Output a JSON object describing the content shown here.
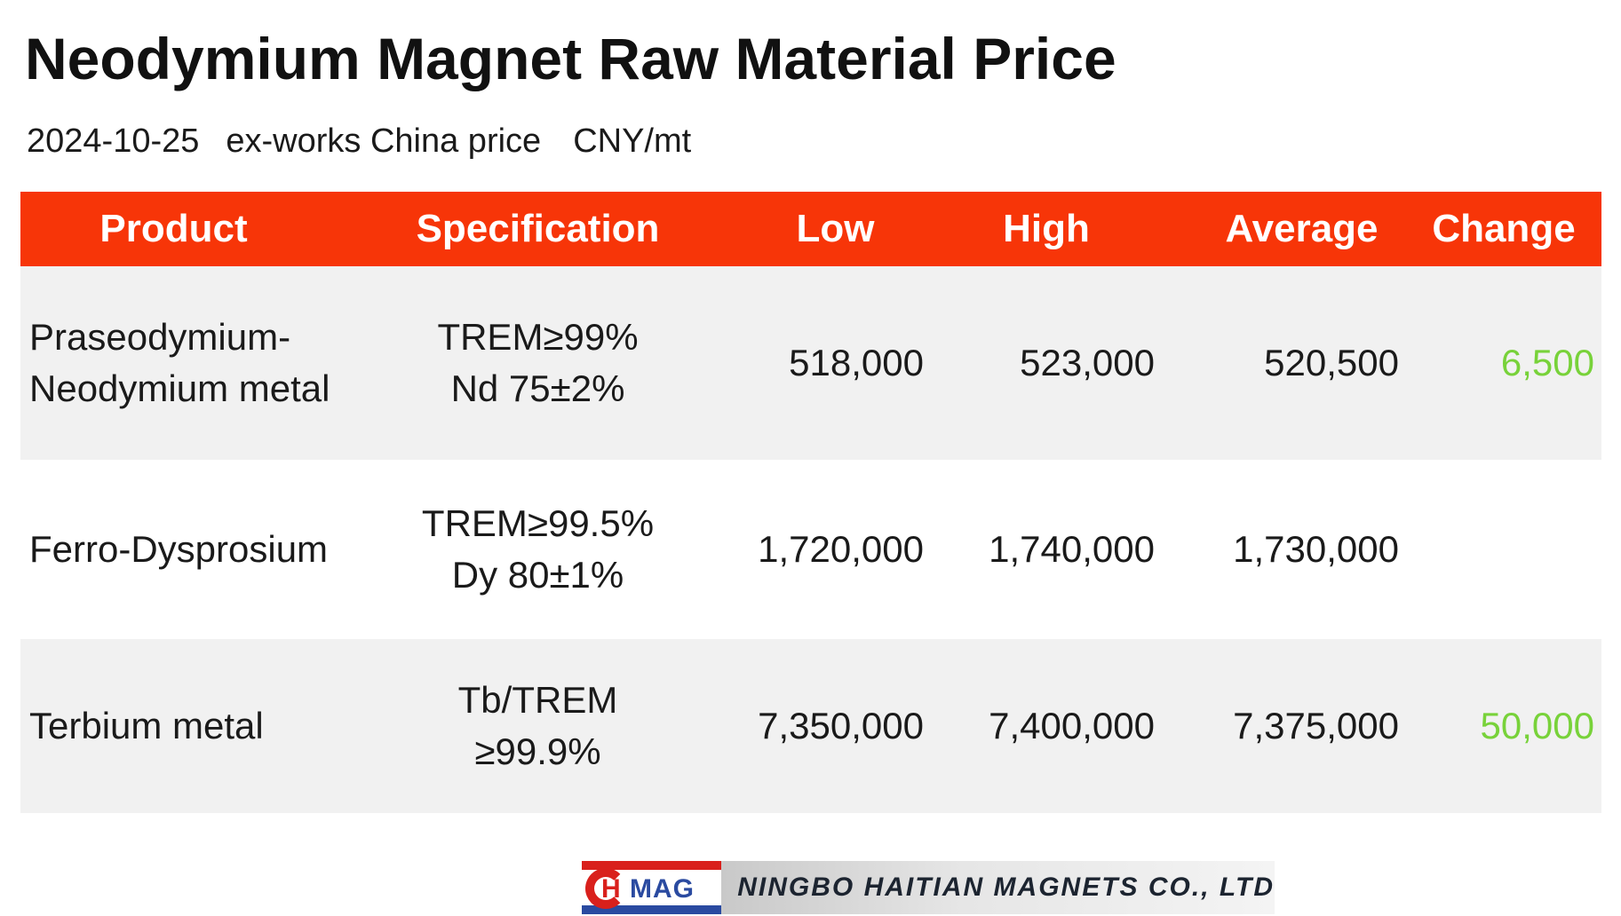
{
  "header": {
    "title": "Neodymium Magnet Raw Material Price",
    "date": "2024-10-25",
    "basis": "ex-works China price",
    "unit": "CNY/mt"
  },
  "table": {
    "columns": [
      "Product",
      "Specification",
      "Low",
      "High",
      "Average",
      "Change"
    ],
    "rows": [
      {
        "product_line1": "Praseodymium-",
        "product_line2": "Neodymium metal",
        "spec_line1": "TREM≥99%",
        "spec_line2": "Nd 75±2%",
        "low": "518,000",
        "high": "523,000",
        "average": "520,500",
        "change": "6,500"
      },
      {
        "product_line1": "Ferro-Dysprosium",
        "product_line2": "",
        "spec_line1": "TREM≥99.5%",
        "spec_line2": "Dy 80±1%",
        "low": "1,720,000",
        "high": "1,740,000",
        "average": "1,730,000",
        "change": ""
      },
      {
        "product_line1": "Terbium metal",
        "product_line2": "",
        "spec_line1": "Tb/TREM",
        "spec_line2": "≥99.9%",
        "low": "7,350,000",
        "high": "7,400,000",
        "average": "7,375,000",
        "change": "50,000"
      }
    ]
  },
  "colors": {
    "header_bg": "#f73508",
    "row_shade": "#f1f1f1",
    "change_positive": "#78d23a"
  },
  "logo": {
    "mark_text_h": "H",
    "mark_text_rest": "MAG",
    "company": "NINGBO HAITIAN MAGNETS CO., LTD"
  }
}
